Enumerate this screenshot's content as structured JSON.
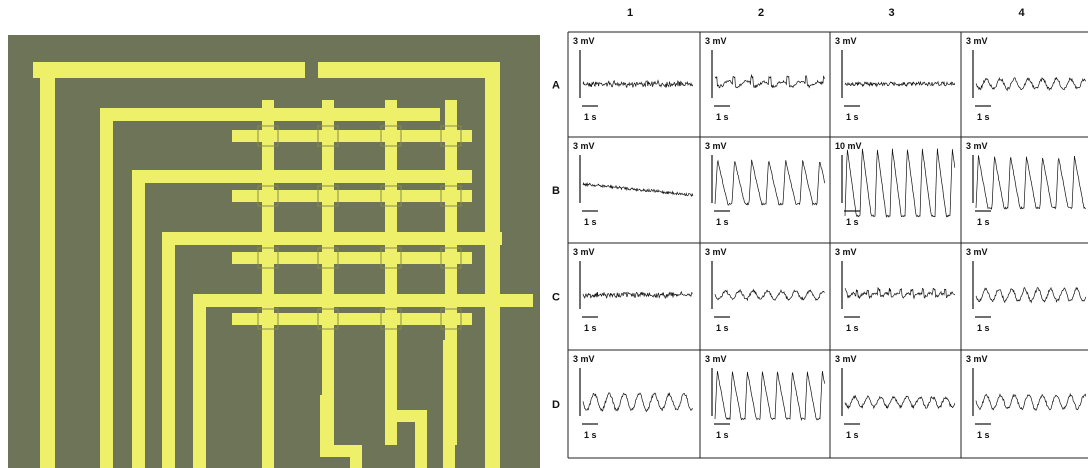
{
  "columns": [
    "1",
    "2",
    "3",
    "4"
  ],
  "rows": [
    {
      "label": "A",
      "cells": [
        {
          "scale": "3 mV",
          "time": "1 s"
        },
        {
          "scale": "3 mV",
          "time": "1 s"
        },
        {
          "scale": "3 mV",
          "time": "1 s"
        },
        {
          "scale": "3 mV",
          "time": "1 s"
        }
      ]
    },
    {
      "label": "B",
      "cells": [
        {
          "scale": "3 mV",
          "time": "1 s"
        },
        {
          "scale": "3 mV",
          "time": "1 s"
        },
        {
          "scale": "10 mV",
          "time": "1 s"
        },
        {
          "scale": "3 mV",
          "time": "1 s"
        }
      ]
    },
    {
      "label": "C",
      "cells": [
        {
          "scale": "3 mV",
          "time": "1 s"
        },
        {
          "scale": "3 mV",
          "time": "1 s"
        },
        {
          "scale": "3 mV",
          "time": "1 s"
        },
        {
          "scale": "3 mV",
          "time": "1 s"
        }
      ]
    },
    {
      "label": "D",
      "cells": [
        {
          "scale": "3 mV",
          "time": "1 s"
        },
        {
          "scale": "3 mV",
          "time": "1 s"
        },
        {
          "scale": "3 mV",
          "time": "1 s"
        },
        {
          "scale": "3 mV",
          "time": "1 s"
        }
      ]
    }
  ]
}
